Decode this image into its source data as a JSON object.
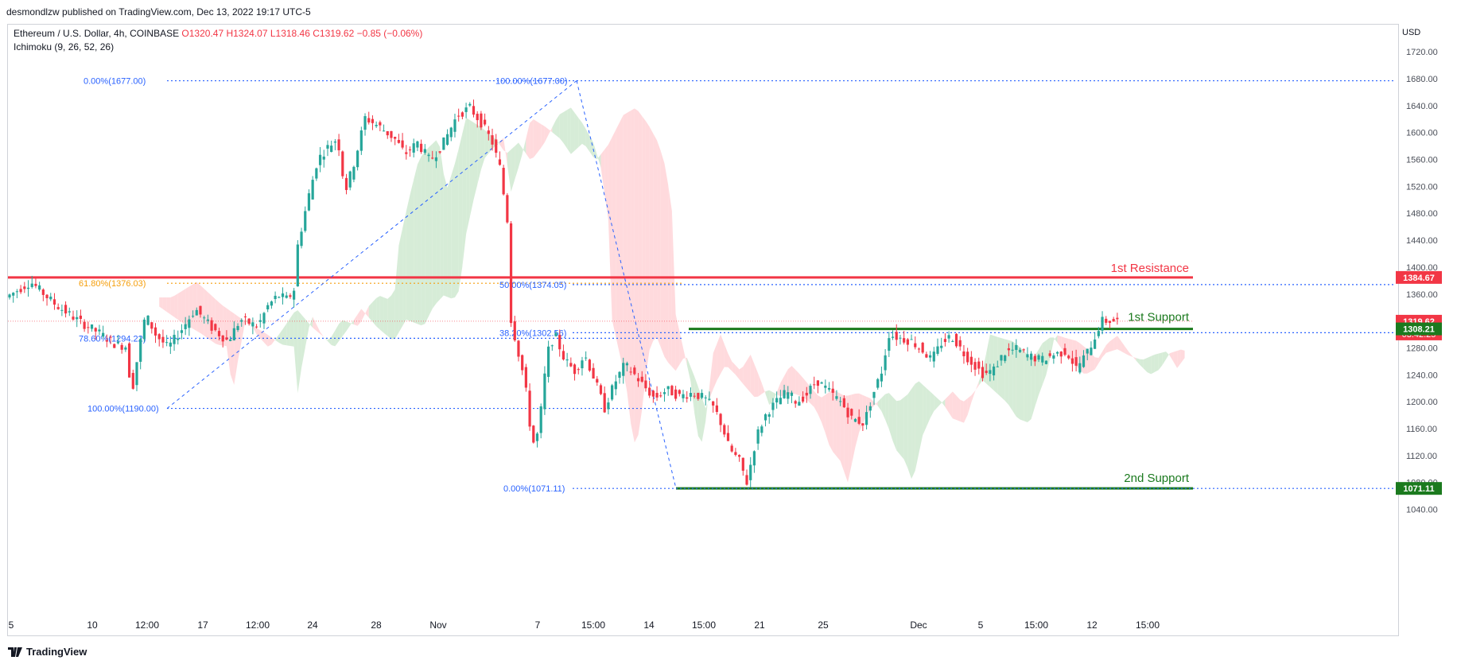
{
  "header": {
    "published_by": "desmondlzw published on TradingView.com, Dec 13, 2022 19:17 UTC-5",
    "symbol": "Ethereum / U.S. Dollar, 4h, COINBASE",
    "ohlc": "O1320.47  H1324.07  L1318.46  C1319.62  −0.85 (−0.06%)",
    "indicator": "Ichimoku (9, 26, 52, 26)",
    "currency": "USD"
  },
  "footer": {
    "brand": "TradingView",
    "logo": "tradingview-logo-icon"
  },
  "colors": {
    "bull": "#26a69a",
    "bear": "#f23645",
    "cloud_bull": "#c8e6c9",
    "cloud_bear": "#ffcdd2",
    "fib": "#2962ff",
    "resistance": "#f23645",
    "support": "#1b7a1e",
    "golden": "#f59e0b"
  },
  "chart_data": {
    "type": "candlestick",
    "ylim": [
      1020,
      1730
    ],
    "y_ticks": [
      "1720.00",
      "1680.00",
      "1640.00",
      "1600.00",
      "1560.00",
      "1520.00",
      "1480.00",
      "1440.00",
      "1400.00",
      "1360.00",
      "1320.00",
      "1280.00",
      "1240.00",
      "1200.00",
      "1160.00",
      "1120.00",
      "1080.00",
      "1040.00"
    ],
    "x_ticks": [
      "5",
      "10",
      "12:00",
      "17",
      "12:00",
      "24",
      "28",
      "Nov",
      "7",
      "15:00",
      "14",
      "15:00",
      "21",
      "25",
      "Dec",
      "5",
      "15:00",
      "12",
      "15:00"
    ],
    "price_path": [
      [
        0,
        1355
      ],
      [
        20,
        1378
      ],
      [
        40,
        1344
      ],
      [
        60,
        1318
      ],
      [
        75,
        1302
      ],
      [
        88,
        1285
      ],
      [
        98,
        1282
      ],
      [
        100,
        1200
      ],
      [
        104,
        1250
      ],
      [
        112,
        1330
      ],
      [
        120,
        1300
      ],
      [
        130,
        1280
      ],
      [
        140,
        1305
      ],
      [
        152,
        1338
      ],
      [
        165,
        1310
      ],
      [
        178,
        1290
      ],
      [
        188,
        1322
      ],
      [
        202,
        1312
      ],
      [
        210,
        1342
      ],
      [
        218,
        1358
      ],
      [
        226,
        1352
      ],
      [
        232,
        1370
      ],
      [
        234,
        1432
      ],
      [
        242,
        1500
      ],
      [
        250,
        1560
      ],
      [
        258,
        1578
      ],
      [
        266,
        1592
      ],
      [
        272,
        1512
      ],
      [
        280,
        1560
      ],
      [
        288,
        1622
      ],
      [
        300,
        1608
      ],
      [
        312,
        1590
      ],
      [
        320,
        1568
      ],
      [
        330,
        1585
      ],
      [
        340,
        1558
      ],
      [
        350,
        1582
      ],
      [
        362,
        1626
      ],
      [
        372,
        1637
      ],
      [
        382,
        1612
      ],
      [
        390,
        1585
      ],
      [
        396,
        1548
      ],
      [
        402,
        1470
      ],
      [
        404,
        1330
      ],
      [
        410,
        1280
      ],
      [
        416,
        1230
      ],
      [
        420,
        1168
      ],
      [
        424,
        1130
      ],
      [
        428,
        1171
      ],
      [
        434,
        1272
      ],
      [
        440,
        1300
      ],
      [
        448,
        1262
      ],
      [
        456,
        1246
      ],
      [
        464,
        1270
      ],
      [
        472,
        1233
      ],
      [
        480,
        1190
      ],
      [
        488,
        1228
      ],
      [
        496,
        1255
      ],
      [
        504,
        1240
      ],
      [
        512,
        1222
      ],
      [
        520,
        1205
      ],
      [
        530,
        1218
      ],
      [
        540,
        1208
      ],
      [
        550,
        1213
      ],
      [
        560,
        1205
      ],
      [
        568,
        1190
      ],
      [
        574,
        1165
      ],
      [
        580,
        1130
      ],
      [
        588,
        1112
      ],
      [
        594,
        1080
      ],
      [
        602,
        1150
      ],
      [
        610,
        1184
      ],
      [
        618,
        1200
      ],
      [
        626,
        1215
      ],
      [
        634,
        1199
      ],
      [
        642,
        1211
      ],
      [
        650,
        1232
      ],
      [
        660,
        1215
      ],
      [
        670,
        1198
      ],
      [
        678,
        1175
      ],
      [
        688,
        1168
      ],
      [
        694,
        1205
      ],
      [
        702,
        1245
      ],
      [
        708,
        1300
      ],
      [
        716,
        1295
      ],
      [
        726,
        1290
      ],
      [
        734,
        1278
      ],
      [
        742,
        1262
      ],
      [
        750,
        1287
      ],
      [
        758,
        1298
      ],
      [
        768,
        1272
      ],
      [
        776,
        1255
      ],
      [
        784,
        1240
      ],
      [
        792,
        1248
      ],
      [
        800,
        1272
      ],
      [
        810,
        1278
      ],
      [
        820,
        1268
      ],
      [
        830,
        1262
      ],
      [
        840,
        1270
      ],
      [
        850,
        1275
      ],
      [
        858,
        1250
      ],
      [
        866,
        1270
      ],
      [
        874,
        1300
      ],
      [
        878,
        1320
      ],
      [
        890,
        1320
      ]
    ],
    "resistance_1": {
      "label": "1st Resistance",
      "value": 1384.67,
      "price_label": "1384.67"
    },
    "support_1": {
      "label": "1st Support",
      "value": 1308.21,
      "price_label": "1308.21"
    },
    "support_2": {
      "label": "2nd Support",
      "value": 1071.11,
      "price_label": "1071.11"
    },
    "last_price": {
      "value": 1319.62,
      "label": "1319.62",
      "countdown": "03:42:25"
    },
    "fib_left": [
      {
        "label": "0.00%(1677.00)",
        "value": 1677
      },
      {
        "label": "61.80%(1376.03)",
        "value": 1376.03,
        "golden": true
      },
      {
        "label": "78.60%(1294.22)",
        "value": 1294.22
      },
      {
        "label": "100.00%(1190.00)",
        "value": 1190
      }
    ],
    "fib_right": [
      {
        "label": "100.00%(1677.00)",
        "value": 1677
      },
      {
        "label": "50.00%(1374.05)",
        "value": 1374.05
      },
      {
        "label": "38.20%(1302.56)",
        "value": 1302.56
      },
      {
        "label": "0.00%(1071.11)",
        "value": 1071.11
      }
    ]
  }
}
